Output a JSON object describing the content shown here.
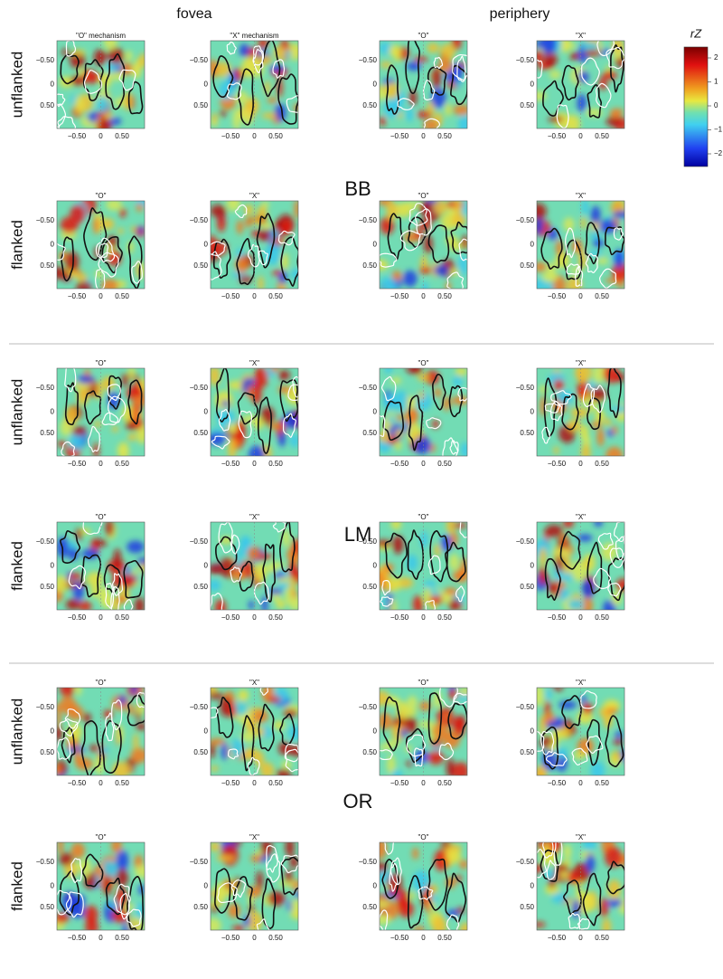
{
  "column_headers": [
    "fovea",
    "periphery"
  ],
  "colorbar": {
    "label": "rZ",
    "ticks": [
      "2",
      "1",
      "0",
      "−1",
      "−2"
    ]
  },
  "axis_ticks": [
    "−0.50",
    "0",
    "0.50"
  ],
  "groups": [
    {
      "label": "BB",
      "rows": [
        {
          "label": "unflanked",
          "panels": [
            "\"O\" mechanism",
            "\"X\" mechanism",
            "\"O\"",
            "\"X\""
          ]
        },
        {
          "label": "flanked",
          "panels": [
            "\"O\"",
            "\"X\"",
            "\"O\"",
            "\"X\""
          ]
        }
      ]
    },
    {
      "label": "LM",
      "rows": [
        {
          "label": "unflanked",
          "panels": [
            "\"O\"",
            "\"X\"",
            "\"O\"",
            "\"X\""
          ]
        },
        {
          "label": "flanked",
          "panels": [
            "\"O\"",
            "\"X\"",
            "\"O\"",
            "\"X\""
          ]
        }
      ]
    },
    {
      "label": "OR",
      "rows": [
        {
          "label": "unflanked",
          "panels": [
            "\"O\"",
            "\"X\"",
            "\"O\"",
            "\"X\""
          ]
        },
        {
          "label": "flanked",
          "panels": [
            "\"O\"",
            "\"X\"",
            "\"O\"",
            "\"X\""
          ]
        }
      ]
    }
  ]
}
